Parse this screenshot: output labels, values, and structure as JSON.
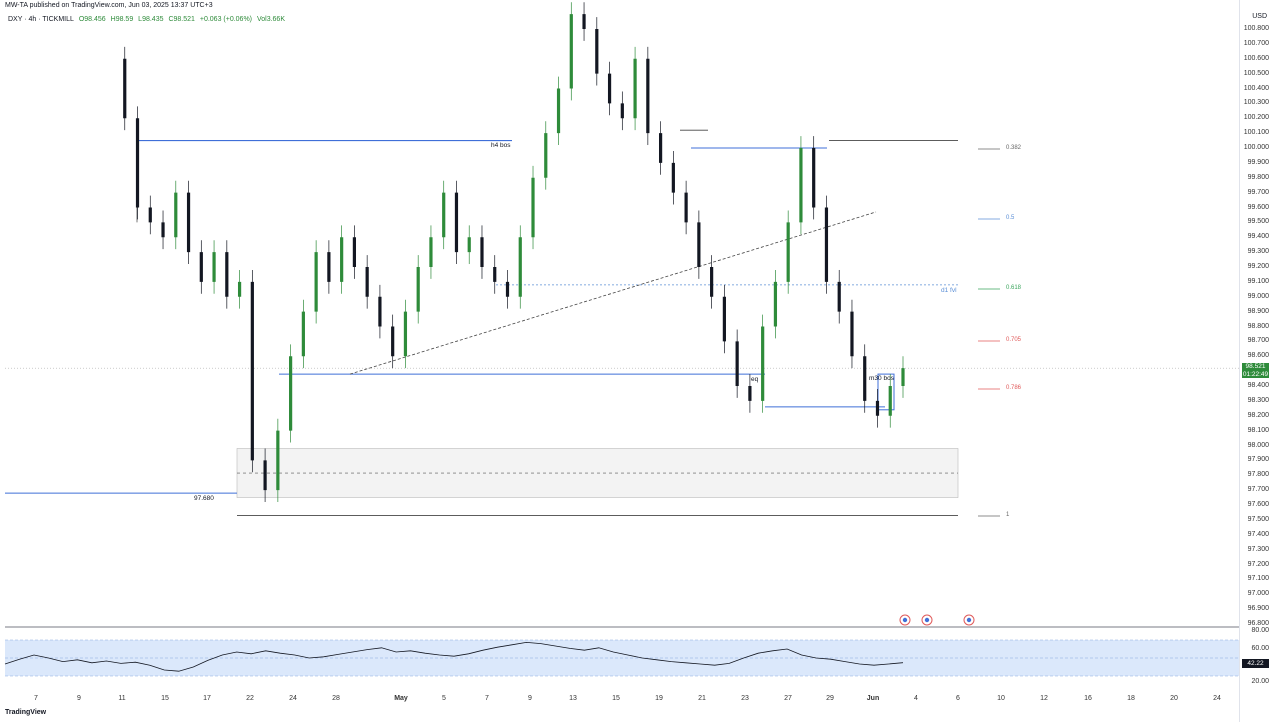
{
  "header": {
    "published": "MW-TA published on TradingView.com, Jun 03, 2025 13:37 UTC+3",
    "symbol": "DXY · 4h · TICKMILL",
    "open": "O98.456",
    "high": "H98.59",
    "low": "L98.435",
    "close": "C98.521",
    "change": "+0.063 (+0.06%)",
    "vol": "Vol3.66K"
  },
  "axis": {
    "currency": "USD",
    "price_ticks": [
      "100.800",
      "100.700",
      "100.600",
      "100.500",
      "100.400",
      "100.300",
      "100.200",
      "100.100",
      "100.000",
      "99.900",
      "99.800",
      "99.700",
      "99.600",
      "99.500",
      "99.400",
      "99.300",
      "99.200",
      "99.100",
      "99.000",
      "98.900",
      "98.800",
      "98.700",
      "98.600",
      "98.400",
      "98.300",
      "98.200",
      "98.100",
      "98.000",
      "97.900",
      "97.800",
      "97.700",
      "97.600",
      "97.500",
      "97.400",
      "97.300",
      "97.200",
      "97.100",
      "97.000",
      "96.900",
      "96.800"
    ],
    "rsi_ticks": [
      "80.00",
      "60.00",
      "20.00"
    ],
    "time_ticks": [
      "7",
      "9",
      "11",
      "15",
      "17",
      "22",
      "24",
      "28",
      "May",
      "5",
      "7",
      "9",
      "13",
      "15",
      "19",
      "21",
      "23",
      "27",
      "29",
      "Jun",
      "4",
      "6",
      "10",
      "12",
      "16",
      "18",
      "20",
      "24"
    ]
  },
  "badges": {
    "last_price": "98.521",
    "countdown": "01:22:49",
    "rsi_value": "42.22"
  },
  "annotations": {
    "h4_bos": "h4 bos",
    "eq": "eq",
    "level_97680": "97.680",
    "d1_fvg": "d1 fvl",
    "m30_bos": "m30 bos"
  },
  "fib_levels": [
    {
      "label": "0.382",
      "color": "#666666"
    },
    {
      "label": "0.5",
      "color": "#5b8fd6"
    },
    {
      "label": "0.618",
      "color": "#3aa55c"
    },
    {
      "label": "0.705",
      "color": "#e05a5a"
    },
    {
      "label": "0.786",
      "color": "#e05a5a"
    },
    {
      "label": "1",
      "color": "#666666"
    }
  ],
  "colors": {
    "up": "#2e8b3a",
    "down": "#131722",
    "level": "#3f6fd8",
    "rsi_band": "#dbe8fb"
  },
  "brand": "TradingView",
  "chart_data": {
    "type": "candlestick",
    "ylim": [
      96.8,
      100.8
    ],
    "rsi_ylim": [
      0,
      100
    ],
    "close_path": [
      100.6,
      100.2,
      99.6,
      99.5,
      99.4,
      99.7,
      99.3,
      99.1,
      99.3,
      99.0,
      99.1,
      97.9,
      97.7,
      98.1,
      98.6,
      98.9,
      99.3,
      99.1,
      99.4,
      99.2,
      99.0,
      98.8,
      98.6,
      98.9,
      99.2,
      99.4,
      99.7,
      99.3,
      99.4,
      99.2,
      99.1,
      99.0,
      99.4,
      99.8,
      100.1,
      100.4,
      100.9,
      100.8,
      100.5,
      100.3,
      100.2,
      100.6,
      100.1,
      99.9,
      99.7,
      99.5,
      99.2,
      99.0,
      98.7,
      98.4,
      98.3,
      98.8,
      99.1,
      99.5,
      100.0,
      99.6,
      99.1,
      98.9,
      98.6,
      98.3,
      98.2,
      98.4,
      98.52
    ],
    "rsi_path": [
      40,
      48,
      55,
      50,
      44,
      47,
      42,
      45,
      41,
      43,
      38,
      30,
      28,
      35,
      46,
      55,
      60,
      57,
      62,
      58,
      55,
      50,
      52,
      56,
      60,
      64,
      67,
      60,
      62,
      58,
      55,
      53,
      57,
      63,
      68,
      72,
      76,
      74,
      70,
      66,
      63,
      67,
      60,
      55,
      50,
      47,
      44,
      42,
      40,
      38,
      41,
      50,
      58,
      62,
      65,
      55,
      50,
      48,
      44,
      40,
      38,
      40,
      42.22
    ]
  }
}
